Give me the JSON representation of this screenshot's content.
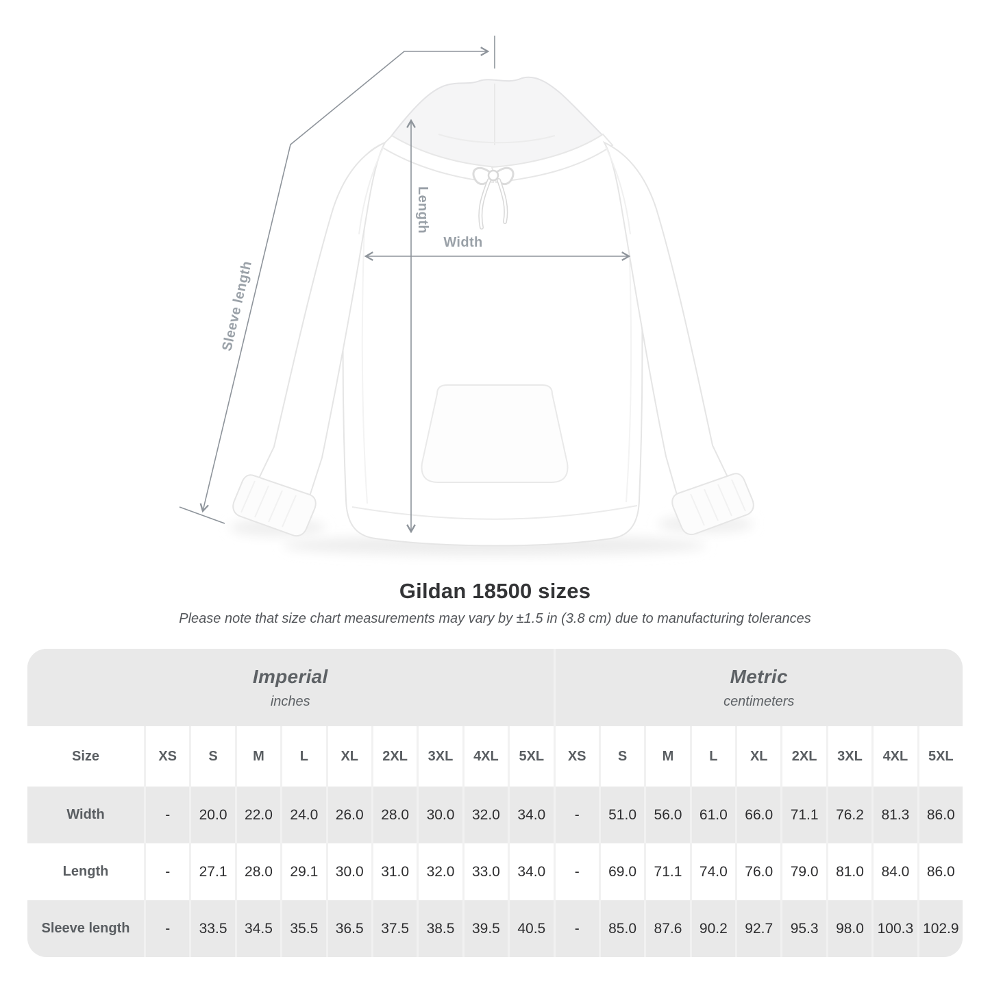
{
  "figure": {
    "width_label": "Width",
    "length_label": "Length",
    "sleeve_length_label": "Sleeve length"
  },
  "title": "Gildan 18500 sizes",
  "subtitle": "Please note that size chart measurements may vary by ±1.5 in (3.8 cm) due to manufacturing tolerances",
  "colors": {
    "row_shade": "#e9e9e9",
    "divider": "#f1f1f1",
    "header_text": "#595d61",
    "value_text": "#2d2d2f",
    "annotation": "#8e949b",
    "annotation_label": "#9aa1a8"
  },
  "table": {
    "groups": [
      {
        "label": "Imperial",
        "sublabel": "inches"
      },
      {
        "label": "Metric",
        "sublabel": "centimeters"
      }
    ],
    "size_header_label": "Size",
    "columns": [
      "XS",
      "S",
      "M",
      "L",
      "XL",
      "2XL",
      "3XL",
      "4XL",
      "5XL",
      "XS",
      "S",
      "M",
      "L",
      "XL",
      "2XL",
      "3XL",
      "4XL",
      "5XL"
    ],
    "rows": [
      {
        "label": "Width",
        "values": [
          "-",
          "20.0",
          "22.0",
          "24.0",
          "26.0",
          "28.0",
          "30.0",
          "32.0",
          "34.0",
          "-",
          "51.0",
          "56.0",
          "61.0",
          "66.0",
          "71.1",
          "76.2",
          "81.3",
          "86.0"
        ]
      },
      {
        "label": "Length",
        "values": [
          "-",
          "27.1",
          "28.0",
          "29.1",
          "30.0",
          "31.0",
          "32.0",
          "33.0",
          "34.0",
          "-",
          "69.0",
          "71.1",
          "74.0",
          "76.0",
          "79.0",
          "81.0",
          "84.0",
          "86.0"
        ]
      },
      {
        "label": "Sleeve length",
        "values": [
          "-",
          "33.5",
          "34.5",
          "35.5",
          "36.5",
          "37.5",
          "38.5",
          "39.5",
          "40.5",
          "-",
          "85.0",
          "87.6",
          "90.2",
          "92.7",
          "95.3",
          "98.0",
          "100.3",
          "102.9"
        ]
      }
    ]
  }
}
